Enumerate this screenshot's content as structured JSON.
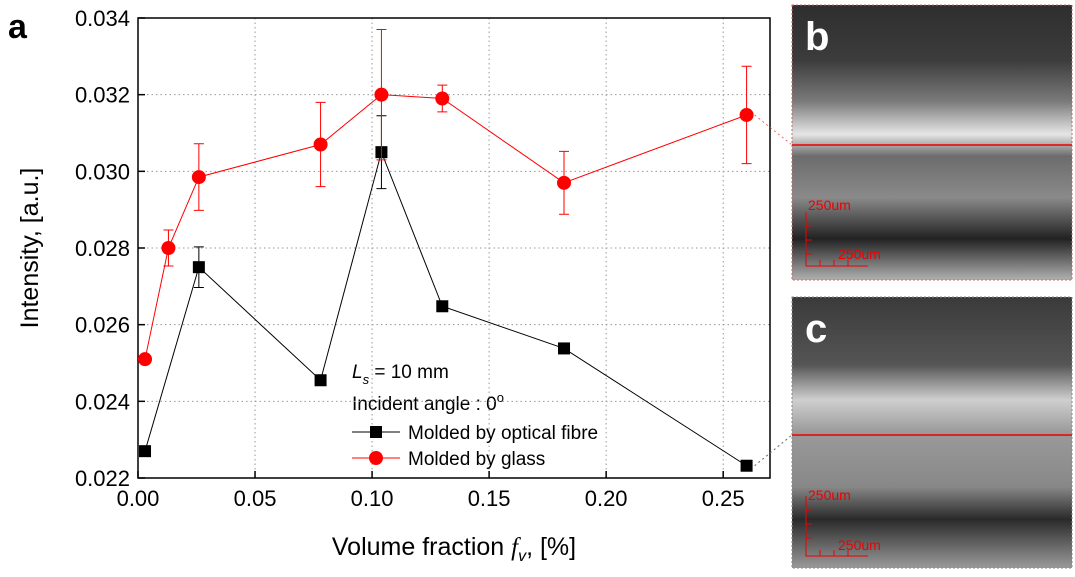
{
  "chart_data": {
    "type": "line",
    "panel_label": "a",
    "xlabel": [
      "Volume fraction ",
      "f",
      "v",
      ", [%]"
    ],
    "ylabel": "Intensity, [a.u.]",
    "xlim": [
      0,
      0.27
    ],
    "ylim": [
      0.022,
      0.034
    ],
    "xticks": [
      {
        "value": 0,
        "label": "0.00"
      },
      0.05,
      {
        "value": 0.1,
        "label": "0.10"
      },
      0.15,
      {
        "value": 0.2,
        "label": "0.20"
      },
      0.25
    ],
    "yticks": [
      0.022,
      0.024,
      0.026,
      0.028,
      {
        "value": 0.03,
        "label": "0.030"
      },
      0.032,
      0.034
    ],
    "grid": true,
    "legend": "lower center",
    "annotations": [
      [
        "L",
        "s",
        " = 10 mm"
      ],
      [
        "Incident angle : 0",
        "o"
      ]
    ],
    "series": [
      {
        "name": "Molded by optical fibre",
        "color": "#000000",
        "marker": "square",
        "x": [
          0.003,
          0.026,
          0.078,
          0.104,
          0.13,
          0.182,
          0.26
        ],
        "values": [
          0.0227,
          0.0275,
          0.02455,
          0.0305,
          0.02648,
          0.02538,
          0.02232
        ],
        "errors": [
          0.0001,
          0.00053,
          0.0001,
          0.00095,
          0.0001,
          0.0001,
          0.0001
        ]
      },
      {
        "name": "Molded by glass",
        "color": "#ff0000",
        "marker": "circle",
        "x": [
          0.003,
          0.013,
          0.026,
          0.078,
          0.104,
          0.13,
          0.182,
          0.26
        ],
        "values": [
          0.0251,
          0.028,
          0.02985,
          0.0307,
          0.032,
          0.0319,
          0.0297,
          0.03147
        ],
        "errors": [
          0.0001,
          0.00047,
          0.00087,
          0.0011,
          0.0017,
          0.00035,
          0.00082,
          0.00127
        ]
      }
    ]
  },
  "micrographs": [
    {
      "label": "b",
      "scale_labels": [
        "250um",
        "250um"
      ]
    },
    {
      "label": "c",
      "scale_labels": [
        "250um",
        "250um"
      ]
    }
  ]
}
